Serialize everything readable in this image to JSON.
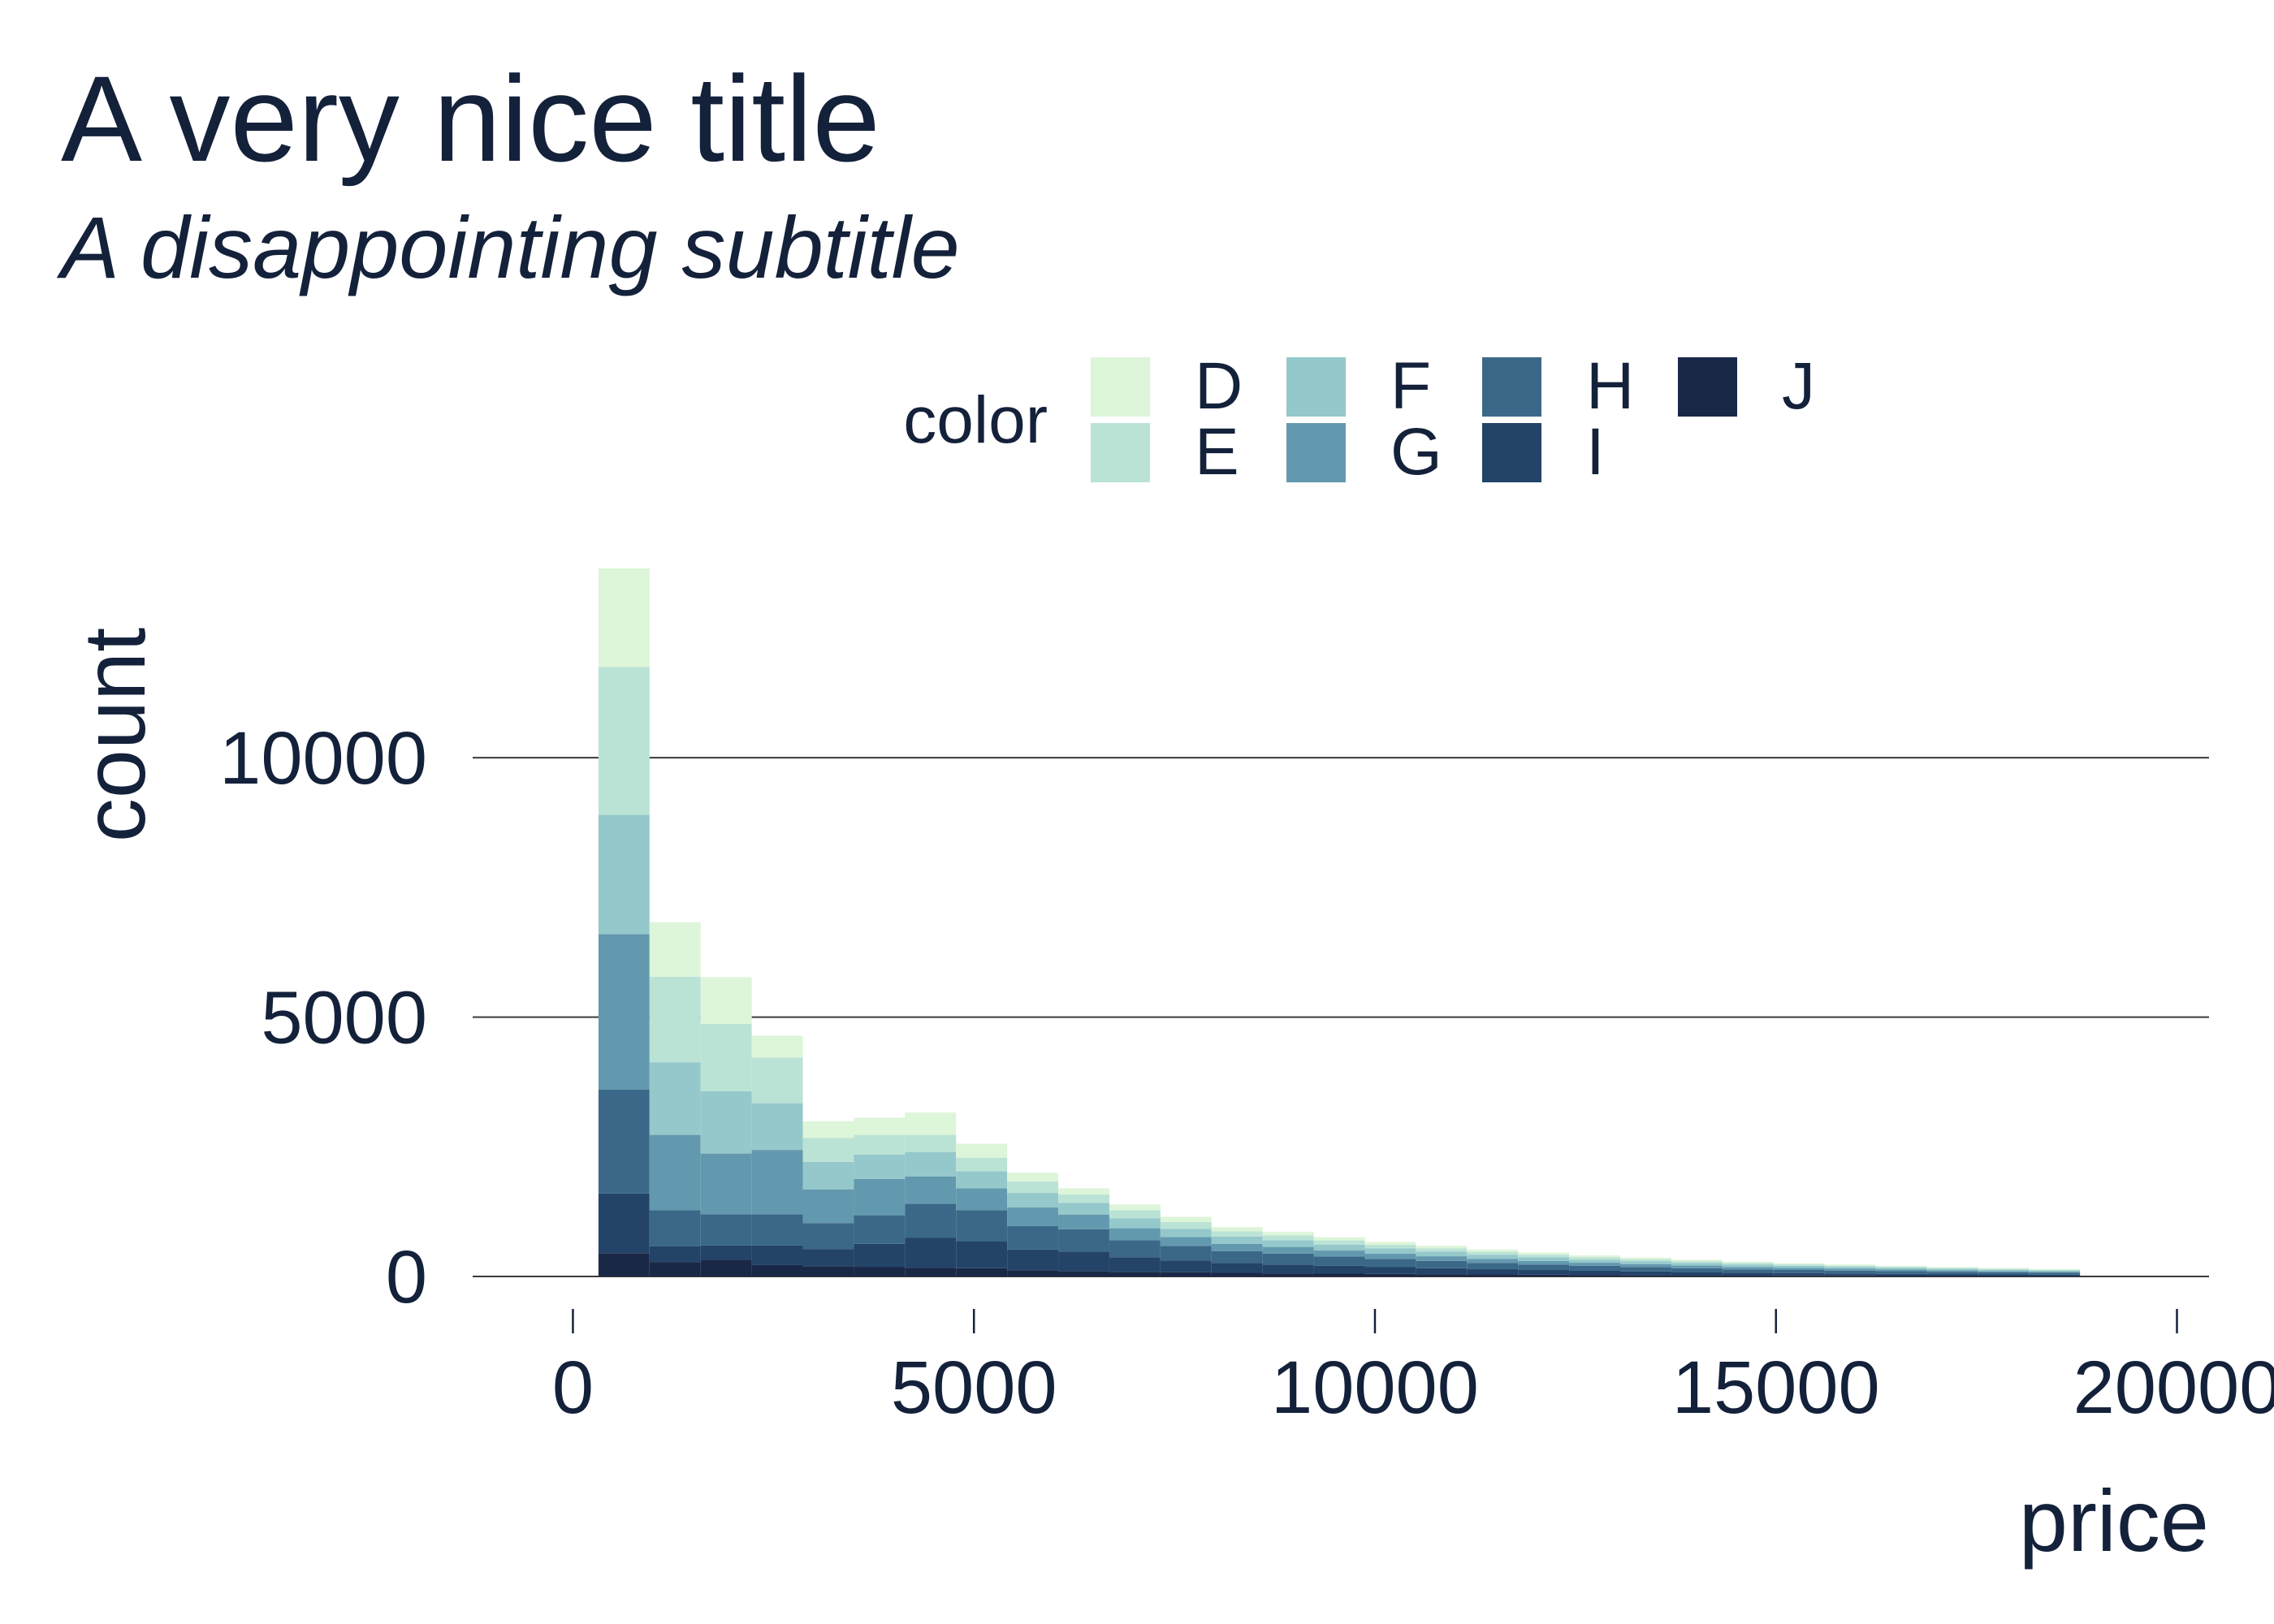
{
  "chart_data": {
    "type": "bar",
    "stacked": true,
    "title": "A very nice title",
    "subtitle": "A disappointing subtitle",
    "xlabel": "price",
    "ylabel": "count",
    "xlim": [
      -1250,
      20400
    ],
    "ylim": [
      0,
      13650
    ],
    "x_ticks": [
      0,
      5000,
      10000,
      15000,
      20000
    ],
    "x_tick_labels": [
      "0",
      "5000",
      "10000",
      "15000",
      "20000"
    ],
    "y_ticks": [
      0,
      5000,
      10000
    ],
    "y_tick_labels": [
      "0",
      "5000",
      "10000"
    ],
    "grid": "horizontal major lines",
    "legend_title": "color",
    "legend_position": "top",
    "bin_width": 637,
    "x": [
      637,
      1274,
      1911,
      2548,
      3185,
      3822,
      4459,
      5096,
      5733,
      6370,
      7007,
      7644,
      8281,
      8918,
      9555,
      10192,
      10829,
      11466,
      12103,
      12740,
      13377,
      14014,
      14651,
      15288,
      15925,
      16562,
      17199,
      17836,
      18473
    ],
    "series": [
      {
        "name": "J",
        "color": "#1a2848",
        "values": [
          450,
          280,
          320,
          220,
          200,
          180,
          170,
          160,
          120,
          100,
          90,
          80,
          70,
          60,
          55,
          50,
          45,
          40,
          35,
          30,
          28,
          25,
          22,
          20,
          18,
          16,
          14,
          12,
          10
        ]
      },
      {
        "name": "I",
        "color": "#234468",
        "values": [
          1150,
          300,
          280,
          380,
          330,
          450,
          580,
          520,
          400,
          380,
          280,
          230,
          190,
          170,
          150,
          130,
          115,
          100,
          90,
          80,
          70,
          60,
          50,
          45,
          40,
          35,
          32,
          28,
          25
        ]
      },
      {
        "name": "H",
        "color": "#3b6888",
        "values": [
          2000,
          700,
          600,
          600,
          500,
          550,
          650,
          600,
          450,
          430,
          330,
          280,
          230,
          210,
          180,
          160,
          140,
          120,
          105,
          95,
          85,
          75,
          65,
          60,
          55,
          50,
          45,
          40,
          35
        ]
      },
      {
        "name": "G",
        "color": "#6399ae",
        "values": [
          3000,
          1450,
          1170,
          1240,
          650,
          700,
          530,
          420,
          360,
          280,
          230,
          170,
          140,
          130,
          115,
          100,
          90,
          80,
          70,
          60,
          55,
          50,
          45,
          40,
          36,
          32,
          28,
          25,
          22
        ]
      },
      {
        "name": "F",
        "color": "#95c8cb",
        "values": [
          2300,
          1400,
          1200,
          900,
          530,
          470,
          470,
          330,
          280,
          230,
          190,
          160,
          140,
          130,
          115,
          100,
          90,
          80,
          70,
          60,
          55,
          50,
          45,
          40,
          36,
          32,
          28,
          25,
          22
        ]
      },
      {
        "name": "E",
        "color": "#bae3d6",
        "values": [
          2850,
          1650,
          1300,
          880,
          460,
          380,
          330,
          260,
          220,
          160,
          160,
          130,
          100,
          90,
          80,
          70,
          60,
          55,
          50,
          45,
          40,
          35,
          32,
          28,
          25,
          22,
          20,
          18,
          16
        ]
      },
      {
        "name": "D",
        "color": "#ddf5d9",
        "values": [
          1900,
          1050,
          900,
          420,
          320,
          330,
          430,
          270,
          170,
          120,
          110,
          100,
          80,
          70,
          60,
          55,
          50,
          45,
          40,
          35,
          32,
          28,
          25,
          22,
          20,
          18,
          16,
          14,
          12
        ]
      }
    ]
  },
  "legend": {
    "items": [
      {
        "label": "D",
        "color": "#ddf5d9"
      },
      {
        "label": "E",
        "color": "#bae3d6"
      },
      {
        "label": "F",
        "color": "#95c8cb"
      },
      {
        "label": "G",
        "color": "#6399ae"
      },
      {
        "label": "H",
        "color": "#3b6888"
      },
      {
        "label": "I",
        "color": "#234468"
      },
      {
        "label": "J",
        "color": "#1a2848"
      }
    ]
  }
}
